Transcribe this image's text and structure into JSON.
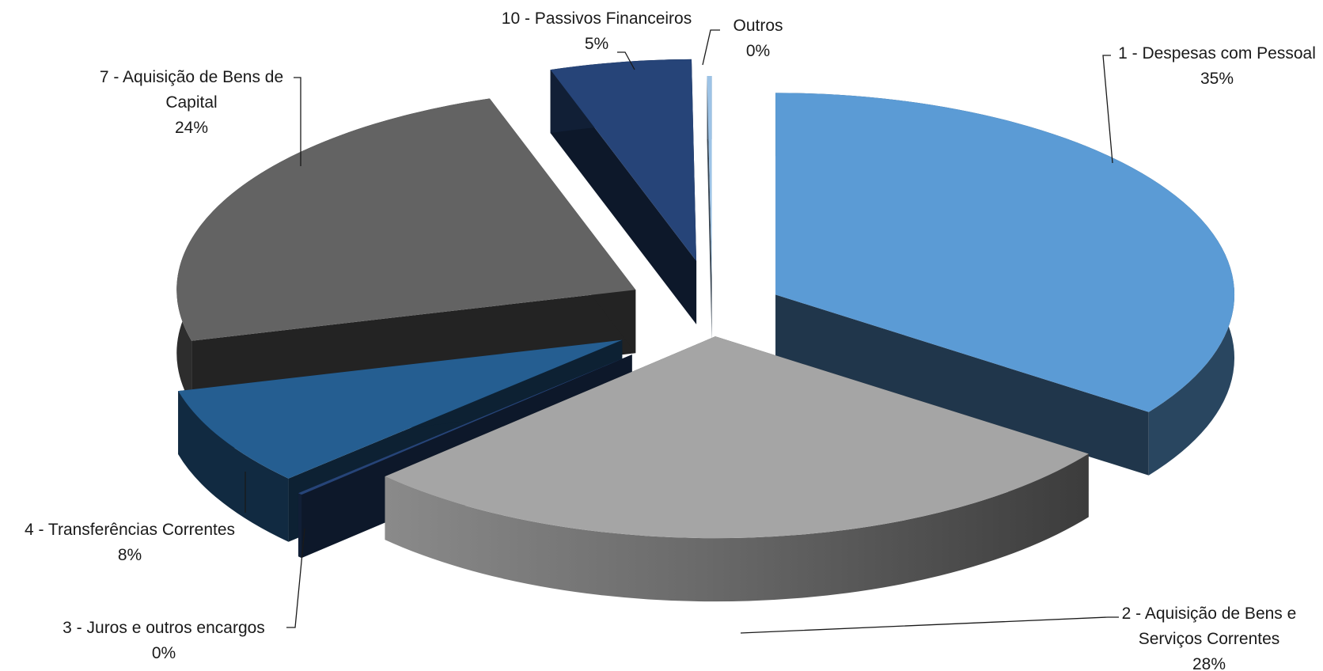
{
  "chart_data": {
    "type": "pie",
    "style": "3d-exploded",
    "slices": [
      {
        "category": "1 - Despesas com Pessoal",
        "label_lines": [
          "1 - Despesas com Pessoal"
        ],
        "percent_label": "35%",
        "value": 35,
        "color": "#5B9BD5"
      },
      {
        "category": "2 - Aquisição de Bens e Serviços Correntes",
        "label_lines": [
          "2 - Aquisição de Bens e",
          "Serviços Correntes"
        ],
        "percent_label": "28%",
        "value": 28,
        "color": "#A5A5A5"
      },
      {
        "category": "3 - Juros e outros encargos",
        "label_lines": [
          "3 - Juros e outros encargos"
        ],
        "percent_label": "0%",
        "value": 0.1,
        "color": "#264478"
      },
      {
        "category": "4 - Transferências Correntes",
        "label_lines": [
          "4 - Transferências Correntes"
        ],
        "percent_label": "8%",
        "value": 8,
        "color": "#255E91"
      },
      {
        "category": "7 - Aquisição de Bens de Capital",
        "label_lines": [
          "7 - Aquisição de Bens de",
          "Capital"
        ],
        "percent_label": "24%",
        "value": 24,
        "color": "#636363"
      },
      {
        "category": "10 - Passivos Financeiros",
        "label_lines": [
          "10 - Passivos Financeiros"
        ],
        "percent_label": "5%",
        "value": 5,
        "color": "#264478"
      },
      {
        "category": "Outros",
        "label_lines": [
          "Outros"
        ],
        "percent_label": "0%",
        "value": 0.1,
        "color": "#9DC3E6"
      }
    ]
  }
}
